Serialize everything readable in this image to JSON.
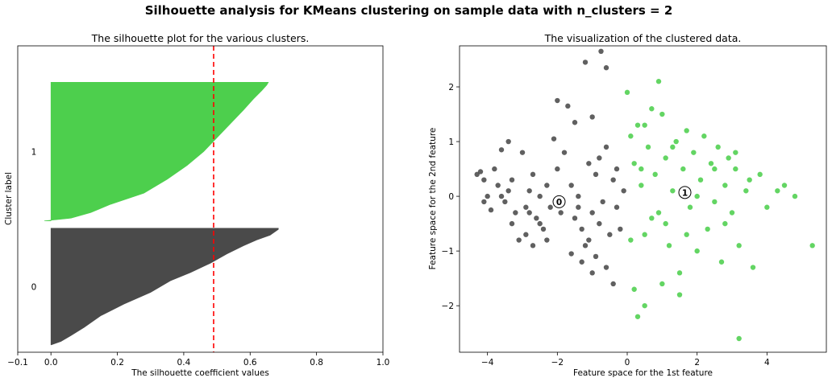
{
  "suptitle": "Silhouette analysis for KMeans clustering on sample data with n_clusters = 2",
  "colors": {
    "cluster_0": "#4a4a4a",
    "cluster_1": "#4dcf4d",
    "avg_line": "#ff0000"
  },
  "chart_data": [
    {
      "type": "silhouette",
      "title": "The silhouette plot for the various clusters.",
      "xlabel": "The silhouette coefficient values",
      "ylabel": "Cluster label",
      "xlim": [
        -0.1,
        1.0
      ],
      "ylim": [
        0,
        420
      ],
      "xticks": [
        -0.1,
        0.0,
        0.2,
        0.4,
        0.6,
        0.8,
        1.0
      ],
      "xtick_labels": [
        "−0.1",
        "0.0",
        "0.2",
        "0.4",
        "0.6",
        "0.8",
        "1.0"
      ],
      "silhouette_avg": 0.49,
      "clusters": [
        {
          "label": "0",
          "y_lower": 10,
          "y_upper": 170,
          "profile": [
            [
              0,
              0.0
            ],
            [
              0.03,
              0.03
            ],
            [
              0.08,
              0.06
            ],
            [
              0.15,
              0.1
            ],
            [
              0.25,
              0.15
            ],
            [
              0.35,
              0.22
            ],
            [
              0.45,
              0.3
            ],
            [
              0.55,
              0.36
            ],
            [
              0.62,
              0.42
            ],
            [
              0.7,
              0.48
            ],
            [
              0.78,
              0.53
            ],
            [
              0.85,
              0.58
            ],
            [
              0.9,
              0.62
            ],
            [
              0.94,
              0.66
            ],
            [
              0.97,
              0.675
            ],
            [
              0.99,
              0.685
            ],
            [
              1,
              0.685
            ]
          ]
        },
        {
          "label": "1",
          "y_lower": 180,
          "y_upper": 370,
          "profile": [
            [
              0,
              -0.02
            ],
            [
              0.02,
              0.06
            ],
            [
              0.06,
              0.12
            ],
            [
              0.12,
              0.18
            ],
            [
              0.2,
              0.28
            ],
            [
              0.3,
              0.35
            ],
            [
              0.4,
              0.41
            ],
            [
              0.5,
              0.46
            ],
            [
              0.6,
              0.5
            ],
            [
              0.7,
              0.54
            ],
            [
              0.8,
              0.58
            ],
            [
              0.88,
              0.61
            ],
            [
              0.94,
              0.635
            ],
            [
              0.98,
              0.65
            ],
            [
              1,
              0.655
            ]
          ]
        }
      ]
    },
    {
      "type": "scatter",
      "title": "The visualization of the clustered data.",
      "xlabel": "Feature space for the 1st feature",
      "ylabel": "Feature space for the 2nd feature",
      "xlim": [
        -4.8,
        5.7
      ],
      "ylim": [
        -2.85,
        2.75
      ],
      "xticks": [
        -4,
        -2,
        0,
        2,
        4
      ],
      "xtick_labels": [
        "−4",
        "−2",
        "0",
        "2",
        "4"
      ],
      "yticks": [
        -2,
        -1,
        0,
        1,
        2
      ],
      "ytick_labels": [
        "−2",
        "−1",
        "0",
        "1",
        "2"
      ],
      "series": [
        {
          "name": "0",
          "points": [
            [
              -4.3,
              0.4
            ],
            [
              -4.2,
              0.45
            ],
            [
              -4.1,
              0.3
            ],
            [
              -4.0,
              0.0
            ],
            [
              -4.1,
              -0.1
            ],
            [
              -3.9,
              -0.25
            ],
            [
              -3.8,
              0.5
            ],
            [
              -3.7,
              0.2
            ],
            [
              -3.6,
              0.0
            ],
            [
              -3.5,
              -0.1
            ],
            [
              -3.4,
              0.1
            ],
            [
              -3.3,
              0.3
            ],
            [
              -3.2,
              -0.3
            ],
            [
              -3.0,
              0.8
            ],
            [
              -2.9,
              -0.2
            ],
            [
              -2.8,
              0.1
            ],
            [
              -2.7,
              0.4
            ],
            [
              -2.6,
              -0.4
            ],
            [
              -2.5,
              0.0
            ],
            [
              -2.4,
              -0.6
            ],
            [
              -3.3,
              -0.5
            ],
            [
              -3.1,
              -0.8
            ],
            [
              -2.9,
              -0.7
            ],
            [
              -2.7,
              -0.9
            ],
            [
              -2.5,
              -0.5
            ],
            [
              -2.3,
              0.2
            ],
            [
              -2.2,
              -0.2
            ],
            [
              -2.1,
              1.05
            ],
            [
              -2.0,
              0.5
            ],
            [
              -1.9,
              -0.3
            ],
            [
              -1.8,
              0.8
            ],
            [
              -1.7,
              1.65
            ],
            [
              -1.6,
              0.2
            ],
            [
              -1.5,
              -0.4
            ],
            [
              -1.4,
              0.0
            ],
            [
              -1.3,
              -0.6
            ],
            [
              -1.2,
              -0.9
            ],
            [
              -1.1,
              0.6
            ],
            [
              -1.0,
              -0.3
            ],
            [
              -0.9,
              0.4
            ],
            [
              -0.8,
              -0.5
            ],
            [
              -0.7,
              -0.1
            ],
            [
              -0.6,
              0.9
            ],
            [
              -0.5,
              -0.7
            ],
            [
              -0.4,
              0.3
            ],
            [
              -0.3,
              -0.2
            ],
            [
              -0.2,
              -0.6
            ],
            [
              -0.1,
              0.1
            ],
            [
              -0.75,
              2.65
            ],
            [
              -0.6,
              2.35
            ],
            [
              -1.2,
              2.45
            ],
            [
              -2.0,
              1.75
            ],
            [
              -1.5,
              1.35
            ],
            [
              -1.0,
              1.45
            ],
            [
              -1.3,
              -1.2
            ],
            [
              -1.0,
              -1.4
            ],
            [
              -0.6,
              -1.3
            ],
            [
              -0.4,
              -1.6
            ],
            [
              -0.9,
              -1.1
            ],
            [
              -1.6,
              -1.05
            ],
            [
              -3.4,
              1.0
            ],
            [
              -3.6,
              0.85
            ],
            [
              -2.3,
              -0.8
            ],
            [
              -1.4,
              -0.2
            ],
            [
              -0.8,
              0.7
            ],
            [
              -2.8,
              -0.3
            ],
            [
              -1.1,
              -0.8
            ],
            [
              -0.3,
              0.5
            ]
          ]
        },
        {
          "name": "1",
          "points": [
            [
              0.0,
              1.9
            ],
            [
              0.1,
              1.1
            ],
            [
              0.2,
              0.6
            ],
            [
              0.3,
              1.3
            ],
            [
              0.4,
              0.2
            ],
            [
              0.5,
              -0.7
            ],
            [
              0.6,
              0.9
            ],
            [
              0.7,
              1.6
            ],
            [
              0.8,
              0.4
            ],
            [
              0.9,
              -0.3
            ],
            [
              1.0,
              1.5
            ],
            [
              1.1,
              0.7
            ],
            [
              1.2,
              -0.9
            ],
            [
              1.3,
              0.1
            ],
            [
              1.4,
              1.0
            ],
            [
              1.5,
              -1.4
            ],
            [
              1.6,
              0.5
            ],
            [
              1.7,
              1.2
            ],
            [
              1.8,
              -0.2
            ],
            [
              1.9,
              0.8
            ],
            [
              2.0,
              -1.0
            ],
            [
              2.1,
              0.3
            ],
            [
              2.2,
              1.1
            ],
            [
              2.3,
              -0.6
            ],
            [
              2.4,
              0.6
            ],
            [
              2.5,
              -0.1
            ],
            [
              2.6,
              0.9
            ],
            [
              2.7,
              -1.2
            ],
            [
              2.8,
              0.2
            ],
            [
              2.9,
              0.7
            ],
            [
              3.0,
              -0.3
            ],
            [
              3.1,
              0.5
            ],
            [
              3.2,
              -0.9
            ],
            [
              3.4,
              0.1
            ],
            [
              3.6,
              -1.3
            ],
            [
              3.8,
              0.4
            ],
            [
              4.0,
              -0.2
            ],
            [
              4.3,
              0.1
            ],
            [
              4.8,
              0.0
            ],
            [
              5.3,
              -0.9
            ],
            [
              0.2,
              -1.7
            ],
            [
              0.5,
              -2.0
            ],
            [
              0.3,
              -2.2
            ],
            [
              1.0,
              -1.6
            ],
            [
              1.5,
              -1.8
            ],
            [
              3.2,
              -2.6
            ],
            [
              0.9,
              2.1
            ],
            [
              0.5,
              1.3
            ],
            [
              1.3,
              0.9
            ],
            [
              2.5,
              0.5
            ],
            [
              3.1,
              0.8
            ],
            [
              0.7,
              -0.4
            ],
            [
              1.1,
              -0.5
            ],
            [
              1.7,
              -0.7
            ],
            [
              2.0,
              0.0
            ],
            [
              0.1,
              -0.8
            ],
            [
              0.4,
              0.5
            ],
            [
              3.5,
              0.3
            ],
            [
              4.5,
              0.2
            ],
            [
              2.8,
              -0.5
            ]
          ]
        }
      ],
      "centers": [
        {
          "label": "0",
          "x": -1.95,
          "y": -0.1
        },
        {
          "label": "1",
          "x": 1.65,
          "y": 0.07
        }
      ]
    }
  ]
}
